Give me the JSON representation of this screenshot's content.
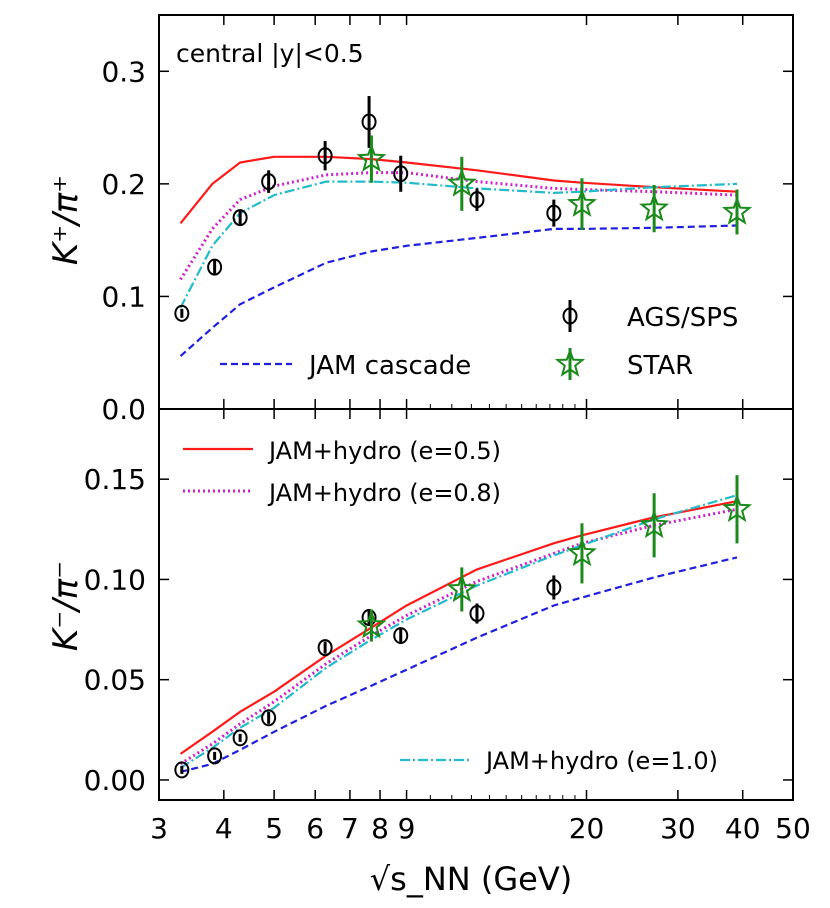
{
  "chart_data": [
    {
      "type": "line",
      "panel": "top",
      "annotation": "central |y|<0.5",
      "xlabel": "√s_NN (GeV)",
      "ylabel": "K⁺/π⁺",
      "xscale": "log",
      "xlim": [
        3,
        50
      ],
      "ylim": [
        0,
        0.35
      ],
      "yticks": [
        0.0,
        0.1,
        0.2,
        0.3
      ],
      "ytick_labels": [
        "0.0",
        "0.1",
        "0.2",
        "0.3"
      ],
      "legend": [
        {
          "label": "JAM cascade",
          "series": "jam_cascade",
          "position": "bottom-left"
        },
        {
          "label": "AGS/SPS",
          "series": "ags_sps",
          "position": "bottom-right"
        },
        {
          "label": "STAR",
          "series": "star",
          "position": "bottom-right"
        }
      ],
      "series": [
        {
          "key": "jam_cascade",
          "style": "dashed",
          "color": "#1f1fe0",
          "x": [
            3.3,
            3.8,
            4.3,
            5.0,
            6.3,
            7.7,
            9.0,
            12.3,
            17.3,
            19.6,
            27,
            39
          ],
          "y": [
            0.047,
            0.072,
            0.093,
            0.108,
            0.13,
            0.14,
            0.145,
            0.152,
            0.16,
            0.16,
            0.161,
            0.163
          ]
        },
        {
          "key": "jam_hydro_05",
          "style": "solid",
          "color": "#ff1a1a",
          "x": [
            3.3,
            3.8,
            4.3,
            5.0,
            6.3,
            7.7,
            9.0,
            12.3,
            17.3,
            19.6,
            27,
            39
          ],
          "y": [
            0.165,
            0.2,
            0.219,
            0.224,
            0.224,
            0.222,
            0.219,
            0.212,
            0.203,
            0.201,
            0.197,
            0.193
          ]
        },
        {
          "key": "jam_hydro_08",
          "style": "dotted",
          "color": "#cc22cc",
          "x": [
            3.3,
            3.8,
            4.3,
            5.0,
            6.3,
            7.7,
            9.0,
            12.3,
            17.3,
            19.6,
            27,
            39
          ],
          "y": [
            0.115,
            0.16,
            0.186,
            0.198,
            0.208,
            0.21,
            0.21,
            0.202,
            0.196,
            0.195,
            0.193,
            0.19
          ]
        },
        {
          "key": "jam_hydro_10",
          "style": "dashdot",
          "color": "#22bbcc",
          "x": [
            3.3,
            3.8,
            4.3,
            5.0,
            6.3,
            7.7,
            9.0,
            12.3,
            17.3,
            19.6,
            27,
            39
          ],
          "y": [
            0.09,
            0.145,
            0.174,
            0.19,
            0.202,
            0.202,
            0.201,
            0.196,
            0.192,
            0.193,
            0.197,
            0.2
          ]
        },
        {
          "key": "ags_sps",
          "style": "marker-circle",
          "color": "#000000",
          "x": [
            3.32,
            3.84,
            4.3,
            4.88,
            6.27,
            7.62,
            8.77,
            12.3,
            17.3
          ],
          "y": [
            0.085,
            0.126,
            0.17,
            0.202,
            0.225,
            0.255,
            0.209,
            0.186,
            0.174
          ],
          "err": [
            0.004,
            0.007,
            0.007,
            0.01,
            0.013,
            0.023,
            0.016,
            0.01,
            0.012
          ]
        },
        {
          "key": "star",
          "style": "marker-star",
          "color": "#1a8a1a",
          "x": [
            7.7,
            11.5,
            19.6,
            27,
            39
          ],
          "y": [
            0.222,
            0.2,
            0.182,
            0.178,
            0.175
          ],
          "err": [
            0.021,
            0.024,
            0.023,
            0.021,
            0.02
          ]
        }
      ]
    },
    {
      "type": "line",
      "panel": "bottom",
      "xlabel": "√s_NN (GeV)",
      "ylabel": "K⁻/π⁻",
      "xscale": "log",
      "xlim": [
        3,
        50
      ],
      "ylim": [
        -0.01,
        0.185
      ],
      "yticks": [
        0.0,
        0.05,
        0.1,
        0.15
      ],
      "ytick_labels": [
        "0.00",
        "0.05",
        "0.10",
        "0.15"
      ],
      "xticks": [
        3,
        4,
        5,
        6,
        7,
        8,
        9,
        20,
        30,
        40,
        50
      ],
      "xtick_labels": [
        "3",
        "4",
        "5",
        "6",
        "7",
        "8",
        "9",
        "20",
        "30",
        "40",
        "50"
      ],
      "legend": [
        {
          "label": "JAM+hydro (e=0.5)",
          "series": "jam_hydro_05",
          "position": "top-left"
        },
        {
          "label": "JAM+hydro (e=0.8)",
          "series": "jam_hydro_08",
          "position": "top-left"
        },
        {
          "label": "JAM+hydro (e=1.0)",
          "series": "jam_hydro_10",
          "position": "bottom-right"
        }
      ],
      "series": [
        {
          "key": "jam_cascade",
          "style": "dashed",
          "color": "#1f1fe0",
          "x": [
            3.3,
            3.8,
            4.3,
            5.0,
            6.3,
            7.7,
            9.0,
            12.3,
            17.3,
            19.6,
            27,
            39
          ],
          "y": [
            0.004,
            0.008,
            0.015,
            0.024,
            0.037,
            0.047,
            0.055,
            0.071,
            0.087,
            0.091,
            0.101,
            0.111
          ]
        },
        {
          "key": "jam_hydro_05",
          "style": "solid",
          "color": "#ff1a1a",
          "x": [
            3.3,
            3.8,
            4.3,
            5.0,
            6.3,
            7.7,
            9.0,
            12.3,
            17.3,
            19.6,
            27,
            39
          ],
          "y": [
            0.013,
            0.024,
            0.034,
            0.044,
            0.062,
            0.076,
            0.087,
            0.105,
            0.118,
            0.122,
            0.131,
            0.139
          ]
        },
        {
          "key": "jam_hydro_08",
          "style": "dotted",
          "color": "#cc22cc",
          "x": [
            3.3,
            3.8,
            4.3,
            5.0,
            6.3,
            7.7,
            9.0,
            12.3,
            17.3,
            19.6,
            27,
            39
          ],
          "y": [
            0.008,
            0.018,
            0.028,
            0.039,
            0.058,
            0.072,
            0.082,
            0.099,
            0.113,
            0.118,
            0.127,
            0.135
          ]
        },
        {
          "key": "jam_hydro_10",
          "style": "dashdot",
          "color": "#22bbcc",
          "x": [
            3.3,
            3.8,
            4.3,
            5.0,
            6.3,
            7.7,
            9.0,
            12.3,
            17.3,
            19.6,
            27,
            39
          ],
          "y": [
            0.006,
            0.016,
            0.026,
            0.036,
            0.056,
            0.07,
            0.08,
            0.097,
            0.112,
            0.117,
            0.13,
            0.142
          ]
        },
        {
          "key": "ags_sps",
          "style": "marker-circle",
          "color": "#000000",
          "x": [
            3.32,
            3.84,
            4.3,
            4.88,
            6.27,
            7.62,
            8.77,
            12.3,
            17.3
          ],
          "y": [
            0.005,
            0.012,
            0.021,
            0.031,
            0.066,
            0.081,
            0.072,
            0.083,
            0.096
          ],
          "err": [
            0.002,
            0.002,
            0.002,
            0.003,
            0.003,
            0.004,
            0.004,
            0.005,
            0.006
          ]
        },
        {
          "key": "star",
          "style": "marker-star",
          "color": "#1a8a1a",
          "x": [
            7.7,
            11.5,
            19.6,
            27,
            39
          ],
          "y": [
            0.077,
            0.095,
            0.113,
            0.127,
            0.135
          ],
          "err": [
            0.008,
            0.011,
            0.015,
            0.016,
            0.017
          ]
        }
      ]
    }
  ]
}
